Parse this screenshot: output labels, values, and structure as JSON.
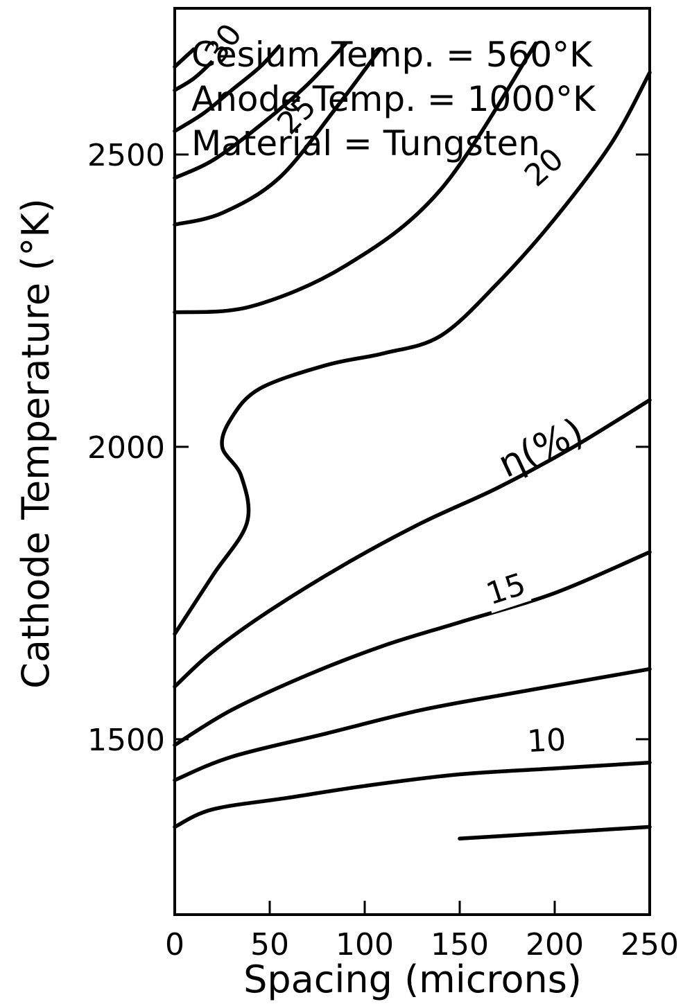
{
  "chart_data": {
    "type": "line",
    "subtype": "contour",
    "xlabel": "Spacing (microns)",
    "ylabel": "Cathode Temperature (°K)",
    "xlim": [
      0,
      250
    ],
    "ylim": [
      1200,
      2750
    ],
    "x_ticks": [
      0,
      50,
      100,
      150,
      200,
      250
    ],
    "y_ticks": [
      1500,
      2000,
      2500
    ],
    "grid": false,
    "annotations": [
      "Cesium Temp. = 560°K",
      "Anode Temp. = 1000°K",
      "Material = Tungsten"
    ],
    "contour_variable_label": "η(%)",
    "contour_labels": [
      {
        "text": "30",
        "x": 30,
        "y": 2680,
        "rotate": -55
      },
      {
        "text": "25",
        "x": 68,
        "y": 2555,
        "rotate": -45
      },
      {
        "text": "20",
        "x": 198,
        "y": 2465,
        "rotate": -42
      },
      {
        "text": "15",
        "x": 176,
        "y": 1740,
        "rotate": -18
      },
      {
        "text": "10",
        "x": 196,
        "y": 1480,
        "rotate": -3
      }
    ],
    "series": [
      {
        "points": [
          [
            0,
            2650
          ],
          [
            5,
            2665
          ],
          [
            10,
            2680
          ]
        ]
      },
      {
        "points": [
          [
            0,
            2610
          ],
          [
            10,
            2630
          ],
          [
            20,
            2660
          ],
          [
            28,
            2690
          ]
        ]
      },
      {
        "points": [
          [
            0,
            2540
          ],
          [
            15,
            2570
          ],
          [
            30,
            2610
          ],
          [
            45,
            2650
          ],
          [
            55,
            2685
          ]
        ]
      },
      {
        "points": [
          [
            0,
            2460
          ],
          [
            20,
            2490
          ],
          [
            45,
            2550
          ],
          [
            70,
            2620
          ],
          [
            90,
            2690
          ]
        ]
      },
      {
        "points": [
          [
            0,
            2380
          ],
          [
            25,
            2400
          ],
          [
            55,
            2460
          ],
          [
            85,
            2580
          ],
          [
            108,
            2680
          ]
        ]
      },
      {
        "points": [
          [
            0,
            2230
          ],
          [
            40,
            2240
          ],
          [
            90,
            2310
          ],
          [
            140,
            2440
          ],
          [
            190,
            2690
          ]
        ]
      },
      {
        "points": [
          [
            0,
            1680
          ],
          [
            20,
            1780
          ],
          [
            38,
            1870
          ],
          [
            35,
            1950
          ],
          [
            25,
            2000
          ],
          [
            30,
            2050
          ],
          [
            45,
            2100
          ],
          [
            80,
            2140
          ],
          [
            110,
            2160
          ],
          [
            140,
            2190
          ],
          [
            170,
            2280
          ],
          [
            200,
            2390
          ],
          [
            230,
            2520
          ],
          [
            250,
            2640
          ]
        ]
      },
      {
        "points": [
          [
            0,
            1590
          ],
          [
            20,
            1650
          ],
          [
            50,
            1720
          ],
          [
            90,
            1800
          ],
          [
            130,
            1870
          ],
          [
            170,
            1930
          ],
          [
            210,
            2000
          ],
          [
            250,
            2080
          ]
        ]
      },
      {
        "points": [
          [
            0,
            1490
          ],
          [
            30,
            1550
          ],
          [
            70,
            1610
          ],
          [
            110,
            1660
          ],
          [
            150,
            1700
          ],
          [
            200,
            1750
          ],
          [
            250,
            1820
          ]
        ]
      },
      {
        "points": [
          [
            0,
            1430
          ],
          [
            30,
            1470
          ],
          [
            80,
            1510
          ],
          [
            130,
            1550
          ],
          [
            180,
            1580
          ],
          [
            250,
            1620
          ]
        ]
      },
      {
        "points": [
          [
            0,
            1350
          ],
          [
            20,
            1380
          ],
          [
            60,
            1400
          ],
          [
            100,
            1420
          ],
          [
            150,
            1440
          ],
          [
            200,
            1450
          ],
          [
            250,
            1460
          ]
        ]
      },
      {
        "points": [
          [
            150,
            1330
          ],
          [
            200,
            1340
          ],
          [
            250,
            1350
          ]
        ]
      }
    ]
  }
}
